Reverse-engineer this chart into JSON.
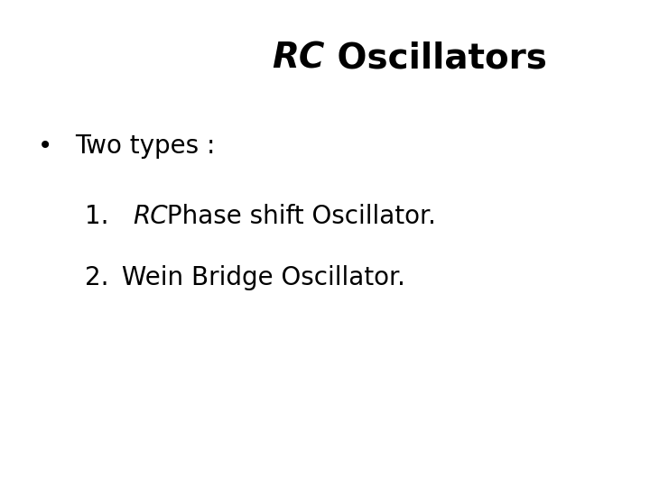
{
  "title_italic": "RC",
  "title_regular": " Oscillators",
  "bullet_text": "Two types :",
  "item1_num": "1.",
  "item1_italic": "RC",
  "item1_rest": " Phase shift Oscillator.",
  "item2_num": "2.",
  "item2_rest": " Wein Bridge Oscillator.",
  "bg_color": "#ffffff",
  "text_color": "#000000",
  "title_fontsize": 28,
  "body_fontsize": 20,
  "fig_width": 7.2,
  "fig_height": 5.4,
  "fig_dpi": 100
}
